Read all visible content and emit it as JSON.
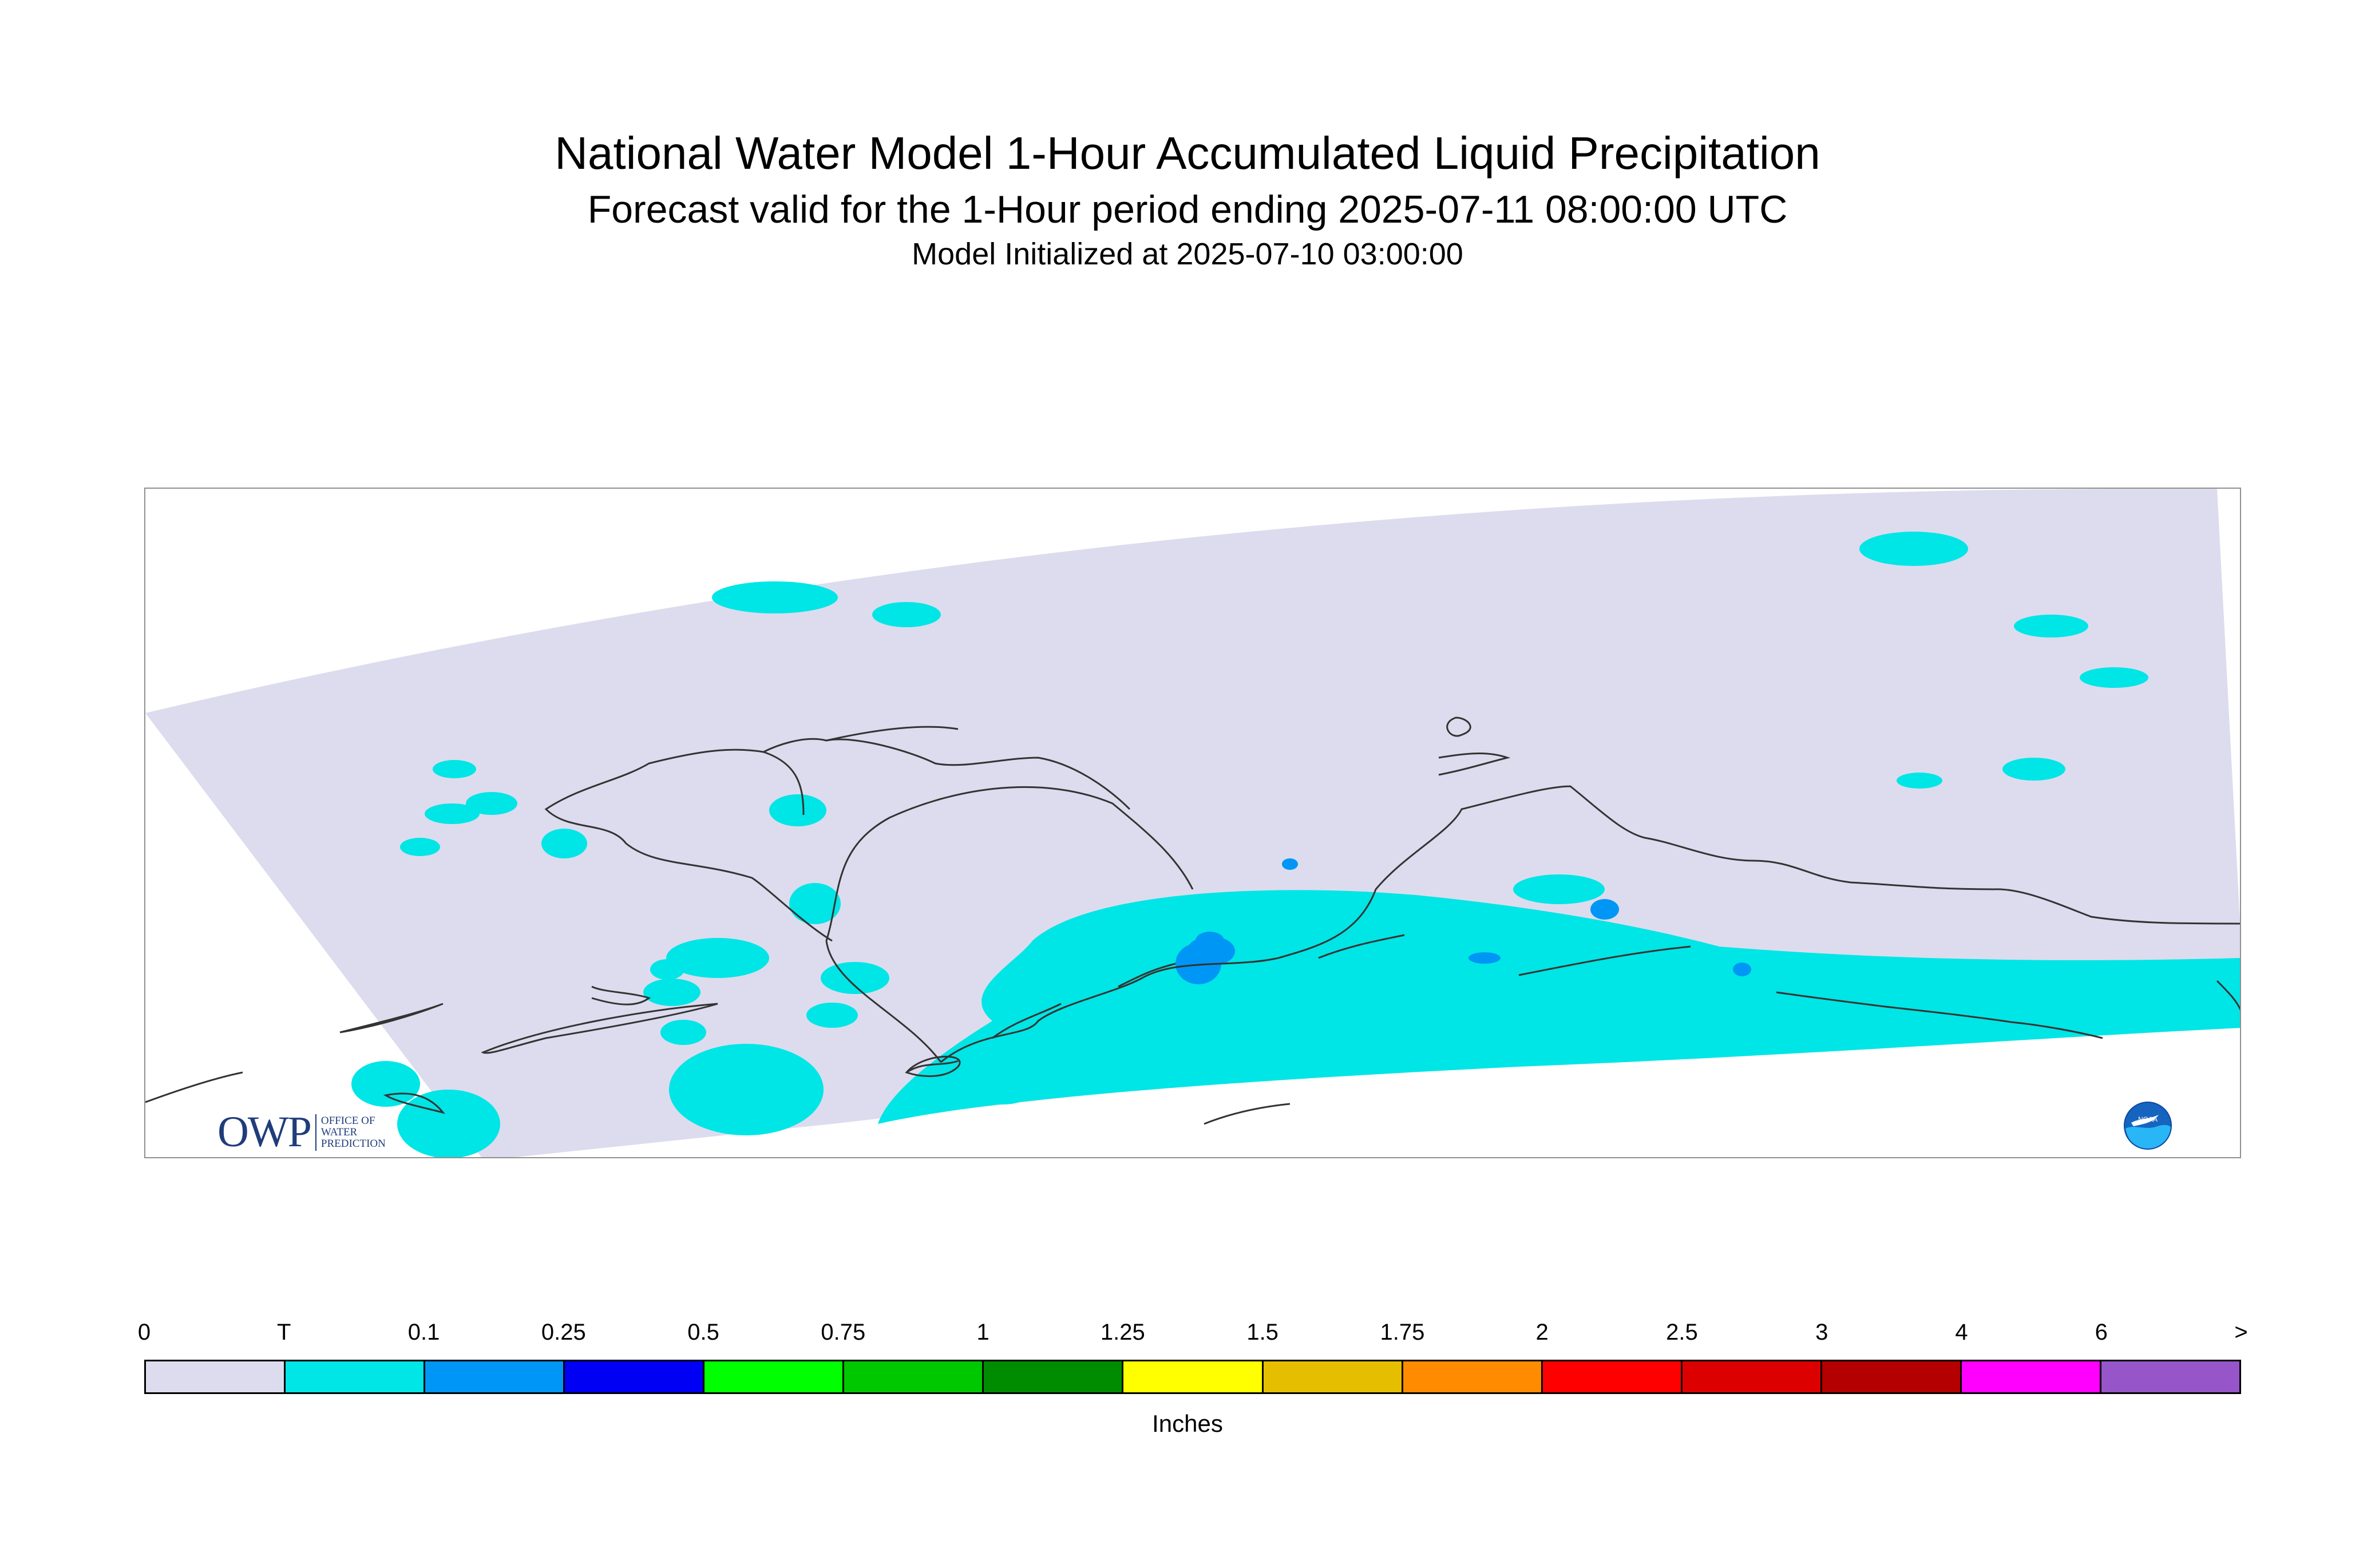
{
  "header": {
    "title": "National Water Model 1-Hour Accumulated Liquid Precipitation",
    "subtitle": "Forecast valid for the 1-Hour period ending 2025-07-11 08:00:00 UTC",
    "init": "Model Initialized at 2025-07-10 03:00:00"
  },
  "map": {
    "region": "Alaska",
    "domain_fill_color": "#dcdcee",
    "coastline_color": "#333333"
  },
  "logos": {
    "owp": {
      "mark": "OWP",
      "text": [
        "OFFICE OF",
        "WATER",
        "PREDICTION"
      ]
    },
    "noaa": {
      "text": "NOAA"
    }
  },
  "legend": {
    "units": "Inches",
    "ticks": [
      "0",
      "T",
      "0.1",
      "0.25",
      "0.5",
      "0.75",
      "1",
      "1.25",
      "1.5",
      "1.75",
      "2",
      "2.5",
      "3",
      "4",
      "6",
      ">"
    ],
    "colors": [
      "#dcdcee",
      "#00e5e5",
      "#0096f5",
      "#0000f5",
      "#00ff00",
      "#00c800",
      "#008c00",
      "#ffff00",
      "#e6be00",
      "#ff8c00",
      "#ff0000",
      "#dc0000",
      "#b40000",
      "#ff00ff",
      "#9655c8"
    ]
  }
}
